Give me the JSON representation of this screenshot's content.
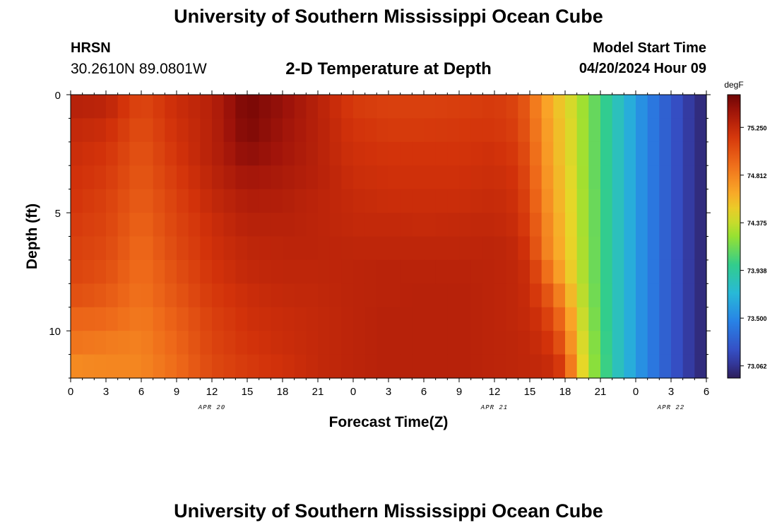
{
  "header": {
    "main_title": "University of Southern Mississippi Ocean Cube",
    "station_name": "HRSN",
    "coordinates": "30.2610N  89.0801W",
    "plot_title": "2-D Temperature at Depth",
    "model_start_label": "Model Start Time",
    "model_start_value": "04/20/2024 Hour 09"
  },
  "footer": {
    "repeated_title": "University of Southern Mississippi Ocean Cube"
  },
  "chart_data": {
    "type": "heatmap",
    "title": "2-D Temperature at Depth",
    "xlabel": "Forecast Time(Z)",
    "ylabel": "Depth (ft)",
    "xlim": [
      0,
      54
    ],
    "ylim": [
      12,
      0
    ],
    "x_ticks": [
      {
        "value": 0,
        "label": "0"
      },
      {
        "value": 3,
        "label": "3"
      },
      {
        "value": 6,
        "label": "6"
      },
      {
        "value": 9,
        "label": "9"
      },
      {
        "value": 12,
        "label": "12"
      },
      {
        "value": 15,
        "label": "15"
      },
      {
        "value": 18,
        "label": "18"
      },
      {
        "value": 21,
        "label": "21"
      },
      {
        "value": 24,
        "label": "0"
      },
      {
        "value": 27,
        "label": "3"
      },
      {
        "value": 30,
        "label": "6"
      },
      {
        "value": 33,
        "label": "9"
      },
      {
        "value": 36,
        "label": "12"
      },
      {
        "value": 39,
        "label": "15"
      },
      {
        "value": 42,
        "label": "18"
      },
      {
        "value": 45,
        "label": "21"
      },
      {
        "value": 48,
        "label": "0"
      },
      {
        "value": 51,
        "label": "3"
      },
      {
        "value": 54,
        "label": "6"
      }
    ],
    "date_labels": [
      {
        "value": 12,
        "label": "APR 20"
      },
      {
        "value": 36,
        "label": "APR 21"
      },
      {
        "value": 51,
        "label": "APR 22"
      }
    ],
    "y_ticks": [
      {
        "value": 0,
        "label": "0"
      },
      {
        "value": 5,
        "label": "5"
      },
      {
        "value": 10,
        "label": "10"
      }
    ],
    "colorbar": {
      "unit": "degF",
      "min": 72.95,
      "max": 75.55,
      "ticks": [
        75.25,
        74.812,
        74.375,
        73.938,
        73.5,
        73.062
      ],
      "tick_labels": [
        "75.250",
        "74.812",
        "74.375",
        "73.938",
        "73.500",
        "73.062"
      ]
    },
    "depth_levels_ft": [
      0.5,
      1.5,
      2.5,
      3.5,
      4.5,
      5.5,
      6.5,
      7.5,
      8.5,
      9.5,
      10.5,
      11.5
    ],
    "time_keyframes_hr": [
      0,
      3,
      6,
      9,
      12,
      15,
      18,
      21,
      24,
      27,
      30,
      33,
      36,
      38,
      39,
      40,
      41,
      42,
      43,
      44,
      45,
      46,
      48,
      50,
      52,
      53,
      54
    ],
    "temperature_keyframes_degF": [
      [
        75.3,
        75.28,
        75.08,
        75.22,
        75.3,
        75.52,
        75.42,
        75.3,
        75.15,
        75.12,
        75.12,
        75.13,
        75.15,
        75.1,
        74.95,
        74.75,
        74.6,
        74.48,
        74.35,
        74.2,
        74.05,
        73.9,
        73.6,
        73.35,
        73.15,
        73.05,
        73.0
      ],
      [
        75.25,
        75.22,
        75.05,
        75.2,
        75.3,
        75.5,
        75.4,
        75.3,
        75.18,
        75.15,
        75.15,
        75.16,
        75.17,
        75.12,
        74.97,
        74.78,
        74.62,
        74.5,
        74.36,
        74.2,
        74.05,
        73.9,
        73.6,
        73.35,
        73.15,
        73.05,
        73.0
      ],
      [
        75.22,
        75.18,
        75.02,
        75.18,
        75.3,
        75.45,
        75.38,
        75.3,
        75.2,
        75.18,
        75.18,
        75.18,
        75.2,
        75.15,
        75.0,
        74.8,
        74.63,
        74.5,
        74.36,
        74.2,
        74.05,
        73.9,
        73.6,
        73.35,
        73.15,
        73.05,
        73.0
      ],
      [
        75.2,
        75.15,
        75.0,
        75.15,
        75.28,
        75.38,
        75.35,
        75.3,
        75.22,
        75.2,
        75.2,
        75.2,
        75.22,
        75.18,
        75.03,
        74.82,
        74.65,
        74.52,
        74.37,
        74.2,
        74.05,
        73.9,
        73.6,
        73.35,
        73.15,
        73.05,
        73.0
      ],
      [
        75.18,
        75.12,
        74.98,
        75.12,
        75.25,
        75.33,
        75.32,
        75.28,
        75.24,
        75.22,
        75.22,
        75.22,
        75.24,
        75.2,
        75.06,
        74.85,
        74.67,
        74.53,
        74.38,
        74.21,
        74.06,
        73.9,
        73.6,
        73.35,
        73.15,
        73.05,
        73.0
      ],
      [
        75.15,
        75.1,
        74.95,
        75.1,
        75.22,
        75.3,
        75.3,
        75.28,
        75.25,
        75.25,
        75.24,
        75.25,
        75.26,
        75.22,
        75.1,
        74.88,
        74.7,
        74.55,
        74.38,
        74.21,
        74.06,
        73.9,
        73.6,
        73.35,
        73.15,
        73.05,
        73.0
      ],
      [
        75.12,
        75.08,
        74.92,
        75.08,
        75.2,
        75.27,
        75.28,
        75.28,
        75.27,
        75.27,
        75.27,
        75.27,
        75.28,
        75.25,
        75.15,
        74.9,
        74.72,
        74.56,
        74.39,
        74.22,
        74.06,
        73.9,
        73.6,
        73.35,
        73.15,
        73.05,
        73.0
      ],
      [
        75.1,
        75.05,
        74.9,
        75.05,
        75.18,
        75.25,
        75.27,
        75.27,
        75.28,
        75.29,
        75.29,
        75.29,
        75.28,
        75.26,
        75.2,
        75.0,
        74.8,
        74.6,
        74.41,
        74.22,
        74.06,
        73.9,
        73.6,
        73.35,
        73.15,
        73.05,
        73.0
      ],
      [
        75.05,
        75.0,
        74.88,
        75.02,
        75.15,
        75.22,
        75.25,
        75.26,
        75.28,
        75.29,
        75.3,
        75.3,
        75.28,
        75.26,
        75.22,
        75.1,
        74.95,
        74.72,
        74.45,
        74.24,
        74.07,
        73.9,
        73.6,
        73.35,
        73.15,
        73.05,
        73.0
      ],
      [
        74.95,
        74.93,
        74.85,
        74.98,
        75.12,
        75.2,
        75.23,
        75.25,
        75.28,
        75.3,
        75.3,
        75.3,
        75.28,
        75.26,
        75.24,
        75.18,
        75.05,
        74.85,
        74.5,
        74.27,
        74.08,
        73.9,
        73.6,
        73.35,
        73.15,
        73.05,
        73.0
      ],
      [
        74.88,
        74.85,
        74.82,
        74.95,
        75.1,
        75.18,
        75.22,
        75.25,
        75.28,
        75.3,
        75.3,
        75.3,
        75.28,
        75.27,
        75.25,
        75.22,
        75.15,
        74.95,
        74.55,
        74.3,
        74.1,
        73.9,
        73.6,
        73.35,
        73.15,
        73.05,
        73.0
      ],
      [
        74.78,
        74.8,
        74.8,
        74.92,
        75.08,
        75.15,
        75.2,
        75.25,
        75.28,
        75.3,
        75.3,
        75.3,
        75.28,
        75.27,
        75.26,
        75.25,
        75.22,
        75.1,
        74.6,
        74.32,
        74.12,
        73.9,
        73.6,
        73.35,
        73.15,
        73.05,
        73.0
      ]
    ]
  }
}
